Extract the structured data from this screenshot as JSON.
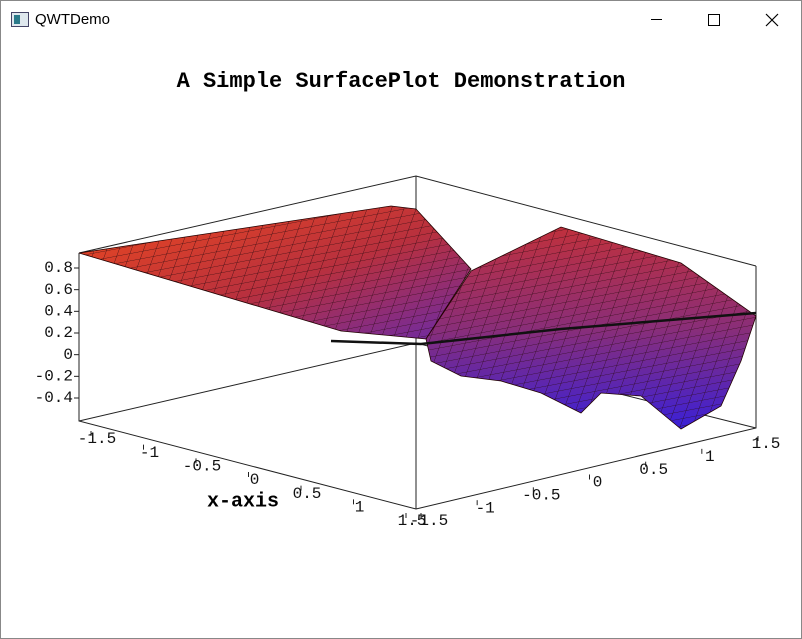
{
  "window": {
    "title": "QWTDemo"
  },
  "plot": {
    "title": "A Simple SurfacePlot Demonstration",
    "x_axis": {
      "label": "x-axis",
      "ticks": [
        "-1.5",
        "-1",
        "-0.5",
        "0",
        "0.5",
        "1",
        "1.5"
      ]
    },
    "y_axis": {
      "ticks": [
        "-1.5",
        "-1",
        "-0.5",
        "0",
        "0.5",
        "1",
        "1.5"
      ]
    },
    "z_axis": {
      "ticks": [
        "0.8",
        "0.6",
        "0.4",
        "0.2",
        "0",
        "-0.2",
        "-0.4"
      ]
    }
  }
}
